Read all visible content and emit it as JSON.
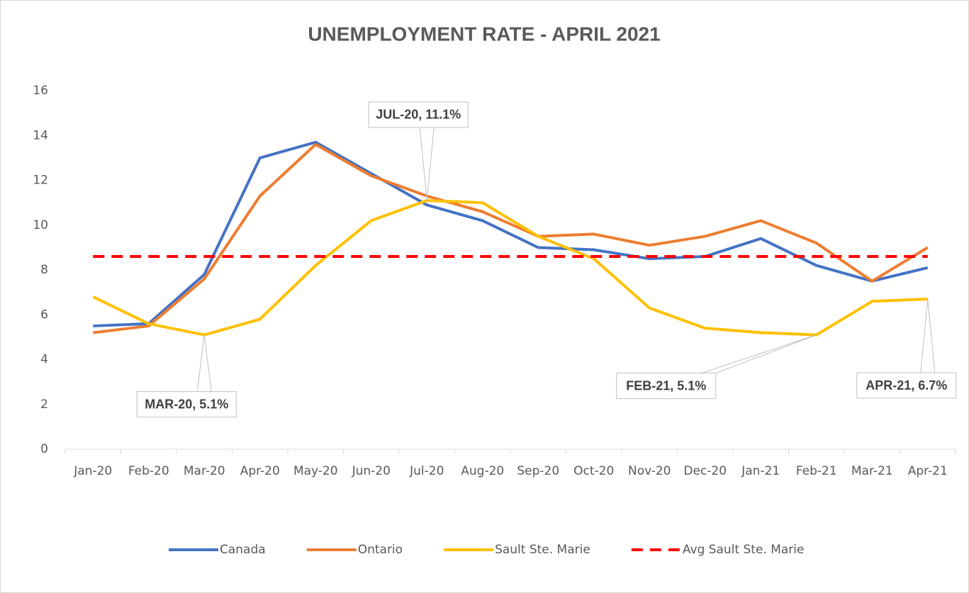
{
  "chart_data": {
    "type": "line",
    "title": "UNEMPLOYMENT RATE - APRIL 2021",
    "categories": [
      "Jan-20",
      "Feb-20",
      "Mar-20",
      "Apr-20",
      "May-20",
      "Jun-20",
      "Jul-20",
      "Aug-20",
      "Sep-20",
      "Oct-20",
      "Nov-20",
      "Dec-20",
      "Jan-21",
      "Feb-21",
      "Mar-21",
      "Apr-21"
    ],
    "series": [
      {
        "name": "Canada",
        "color": "#4472c4",
        "dash": false,
        "values": [
          5.5,
          5.6,
          7.8,
          13.0,
          13.7,
          12.3,
          10.9,
          10.2,
          9.0,
          8.9,
          8.5,
          8.6,
          9.4,
          8.2,
          7.5,
          8.1
        ]
      },
      {
        "name": "Ontario",
        "color": "#ed7d31",
        "dash": false,
        "values": [
          5.2,
          5.5,
          7.6,
          11.3,
          13.6,
          12.2,
          11.3,
          10.6,
          9.5,
          9.6,
          9.1,
          9.5,
          10.2,
          9.2,
          7.5,
          9.0
        ]
      },
      {
        "name": "Sault Ste. Marie",
        "color": "#ffc000",
        "dash": false,
        "values": [
          6.8,
          5.6,
          5.1,
          5.8,
          8.2,
          10.2,
          11.1,
          11.0,
          9.5,
          8.5,
          6.3,
          5.4,
          5.2,
          5.1,
          6.6,
          6.7
        ]
      },
      {
        "name": "Avg Sault Ste. Marie",
        "color": "#ff0000",
        "dash": true,
        "values": [
          8.6,
          8.6,
          8.6,
          8.6,
          8.6,
          8.6,
          8.6,
          8.6,
          8.6,
          8.6,
          8.6,
          8.6,
          8.6,
          8.6,
          8.6,
          8.6
        ]
      }
    ],
    "annotations": [
      {
        "label": "MAR-20,  5.1%",
        "x": "Mar-20",
        "y": 5.1
      },
      {
        "label": "JUL-20,  11.1%",
        "x": "Jul-20",
        "y": 11.1
      },
      {
        "label": "FEB-21, 5.1%",
        "x": "Feb-21",
        "y": 5.1
      },
      {
        "label": "APR-21, 6.7%",
        "x": "Apr-21",
        "y": 6.7
      }
    ],
    "ylim": [
      0,
      16
    ],
    "yticks": [
      0,
      2,
      4,
      6,
      8,
      10,
      12,
      14,
      16
    ],
    "grid": false,
    "legend": "bottom"
  }
}
